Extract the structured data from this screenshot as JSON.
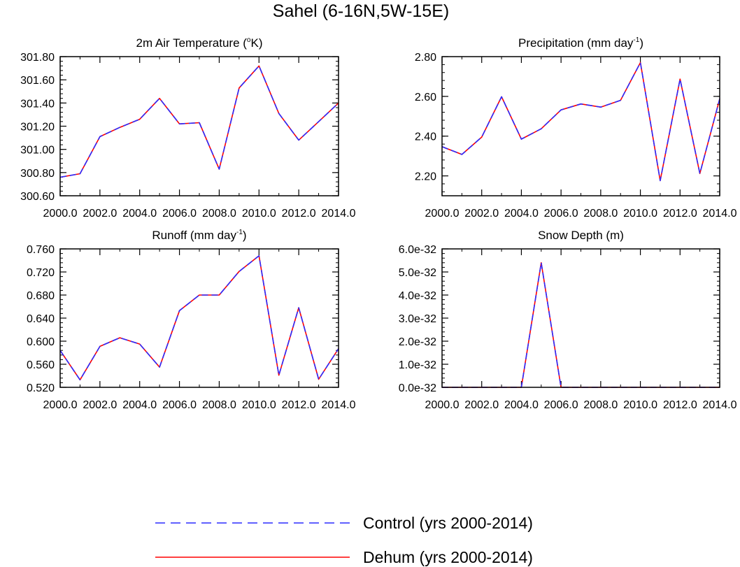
{
  "figure_title": "Sahel (6-16N,5W-15E)",
  "legend": [
    {
      "label": "Control (yrs 2000-2014)",
      "color": "#2b2bff",
      "style": "dashed"
    },
    {
      "label": "Dehum (yrs 2000-2014)",
      "color": "#ff0000",
      "style": "solid"
    }
  ],
  "chart_data": [
    {
      "type": "line",
      "title_main": "2m Air Temperature (",
      "title_sup": "o",
      "title_end": "K)",
      "x": [
        2000,
        2001,
        2002,
        2003,
        2004,
        2005,
        2006,
        2007,
        2008,
        2009,
        2010,
        2011,
        2012,
        2013,
        2014
      ],
      "xlim": [
        2000,
        2014
      ],
      "ylim": [
        300.6,
        301.8
      ],
      "xticks": [
        "2000.0",
        "2002.0",
        "2004.0",
        "2006.0",
        "2008.0",
        "2010.0",
        "2012.0",
        "2014.0"
      ],
      "yticks": [
        "300.60",
        "300.80",
        "301.00",
        "301.20",
        "301.40",
        "301.60",
        "301.80"
      ],
      "series": [
        {
          "name": "Control (yrs 2000-2014)",
          "values": [
            300.76,
            300.79,
            301.11,
            301.19,
            301.26,
            301.44,
            301.22,
            301.23,
            300.83,
            301.53,
            301.72,
            301.31,
            301.08,
            301.24,
            301.4
          ]
        },
        {
          "name": "Dehum (yrs 2000-2014)",
          "values": [
            300.76,
            300.79,
            301.11,
            301.19,
            301.26,
            301.44,
            301.22,
            301.23,
            300.83,
            301.53,
            301.72,
            301.31,
            301.08,
            301.24,
            301.4
          ]
        }
      ]
    },
    {
      "type": "line",
      "title_main": "Precipitation (mm day",
      "title_sup": "-1",
      "title_end": ")",
      "x": [
        2000,
        2001,
        2002,
        2003,
        2004,
        2005,
        2006,
        2007,
        2008,
        2009,
        2010,
        2011,
        2012,
        2013,
        2014
      ],
      "xlim": [
        2000,
        2014
      ],
      "ylim": [
        2.1,
        2.8
      ],
      "xticks": [
        "2000.0",
        "2002.0",
        "2004.0",
        "2006.0",
        "2008.0",
        "2010.0",
        "2012.0",
        "2014.0"
      ],
      "yticks": [
        "2.20",
        "2.40",
        "2.60",
        "2.80"
      ],
      "series": [
        {
          "name": "Control (yrs 2000-2014)",
          "values": [
            2.347,
            2.308,
            2.395,
            2.598,
            2.385,
            2.437,
            2.532,
            2.562,
            2.546,
            2.58,
            2.77,
            2.176,
            2.687,
            2.212,
            2.588
          ]
        },
        {
          "name": "Dehum (yrs 2000-2014)",
          "values": [
            2.347,
            2.308,
            2.395,
            2.598,
            2.385,
            2.437,
            2.532,
            2.562,
            2.546,
            2.58,
            2.77,
            2.176,
            2.687,
            2.212,
            2.588
          ]
        }
      ]
    },
    {
      "type": "line",
      "title_main": "Runoff (mm day",
      "title_sup": "-1",
      "title_end": ")",
      "x": [
        2000,
        2001,
        2002,
        2003,
        2004,
        2005,
        2006,
        2007,
        2008,
        2009,
        2010,
        2011,
        2012,
        2013,
        2014
      ],
      "xlim": [
        2000,
        2014
      ],
      "ylim": [
        0.52,
        0.76
      ],
      "xticks": [
        "2000.0",
        "2002.0",
        "2004.0",
        "2006.0",
        "2008.0",
        "2010.0",
        "2012.0",
        "2014.0"
      ],
      "yticks": [
        "0.520",
        "0.560",
        "0.600",
        "0.640",
        "0.680",
        "0.720",
        "0.760"
      ],
      "series": [
        {
          "name": "Control (yrs 2000-2014)",
          "values": [
            0.584,
            0.533,
            0.591,
            0.606,
            0.595,
            0.555,
            0.653,
            0.68,
            0.68,
            0.721,
            0.748,
            0.541,
            0.658,
            0.534,
            0.587
          ]
        },
        {
          "name": "Dehum (yrs 2000-2014)",
          "values": [
            0.584,
            0.533,
            0.591,
            0.606,
            0.595,
            0.555,
            0.653,
            0.68,
            0.68,
            0.721,
            0.748,
            0.541,
            0.658,
            0.534,
            0.587
          ]
        }
      ]
    },
    {
      "type": "line",
      "title_main": "Snow Depth (m)",
      "title_sup": "",
      "title_end": "",
      "x": [
        2000,
        2001,
        2002,
        2003,
        2004,
        2005,
        2006,
        2007,
        2008,
        2009,
        2010,
        2011,
        2012,
        2013,
        2014
      ],
      "xlim": [
        2000,
        2014
      ],
      "ylim": [
        0,
        6.0
      ],
      "xticks": [
        "2000.0",
        "2002.0",
        "2004.0",
        "2006.0",
        "2008.0",
        "2010.0",
        "2012.0",
        "2014.0"
      ],
      "yticks": [
        "0.0e-32",
        "1.0e-32",
        "2.0e-32",
        "3.0e-32",
        "4.0e-32",
        "5.0e-32",
        "6.0e-32"
      ],
      "series": [
        {
          "name": "Control (yrs 2000-2014)",
          "values": [
            0,
            0,
            0,
            0,
            0,
            5.4,
            0,
            0,
            0,
            0,
            0,
            0,
            0,
            0,
            0
          ]
        },
        {
          "name": "Dehum (yrs 2000-2014)",
          "values": [
            0,
            0,
            0,
            0,
            0,
            5.4,
            0,
            0,
            0,
            0,
            0,
            0,
            0,
            0,
            0
          ]
        }
      ]
    }
  ]
}
